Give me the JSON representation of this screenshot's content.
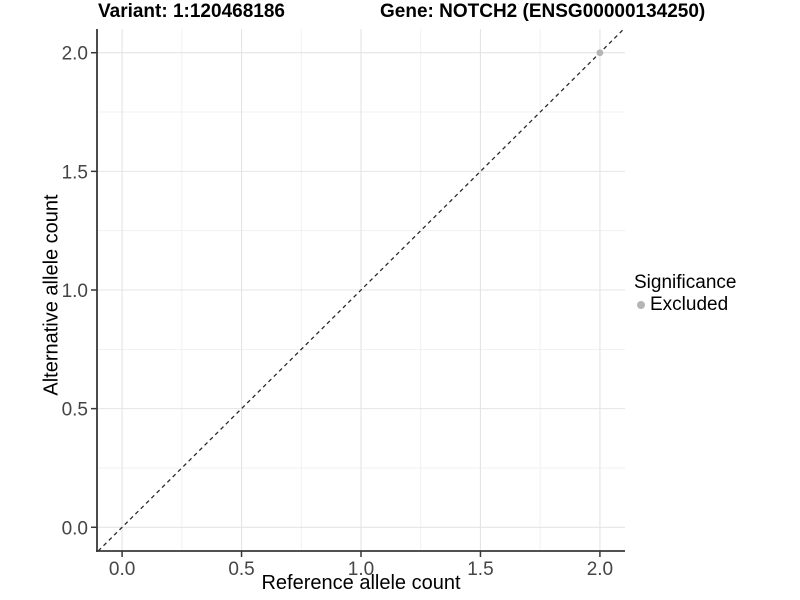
{
  "header": {
    "variant_title": "Variant: 1:120468186",
    "gene_title": "Gene: NOTCH2 (ENSG00000134250)"
  },
  "chart_data": {
    "type": "scatter",
    "title": "Variant: 1:120468186   Gene: NOTCH2 (ENSG00000134250)",
    "xlabel": "Reference allele count",
    "ylabel": "Alternative allele count",
    "xlim": [
      -0.105,
      2.105
    ],
    "ylim": [
      -0.1,
      2.1
    ],
    "xticks": [
      0.0,
      0.5,
      1.0,
      1.5,
      2.0
    ],
    "yticks": [
      0.0,
      0.5,
      1.0,
      1.5,
      2.0
    ],
    "xtick_labels": [
      "0.0",
      "0.5",
      "1.0",
      "1.5",
      "2.0"
    ],
    "ytick_labels": [
      "0.0",
      "0.5",
      "1.0",
      "1.5",
      "2.0"
    ],
    "xticks_minor": [
      0.25,
      0.75,
      1.25,
      1.75
    ],
    "yticks_minor": [
      0.25,
      0.75,
      1.25,
      1.75
    ],
    "grid": true,
    "points": [
      {
        "x": 2.0,
        "y": 2.0,
        "series": "Excluded"
      }
    ],
    "reference_line": {
      "type": "abline",
      "slope": 1,
      "intercept": 0,
      "style": "dashed"
    },
    "legend": {
      "position": "right",
      "title": "Significance",
      "items": [
        {
          "label": "Excluded",
          "color": "#b5b5b5",
          "marker": "circle"
        }
      ]
    },
    "colors": {
      "point": "#b5b5b5",
      "identity_line": "#2b2b2b",
      "axis_line": "#383838",
      "tick_mark": "#383838",
      "tick_label": "#454545",
      "grid_major": "#e4e4e4",
      "grid_minor": "#f1f1f1",
      "background": "#ffffff"
    }
  }
}
